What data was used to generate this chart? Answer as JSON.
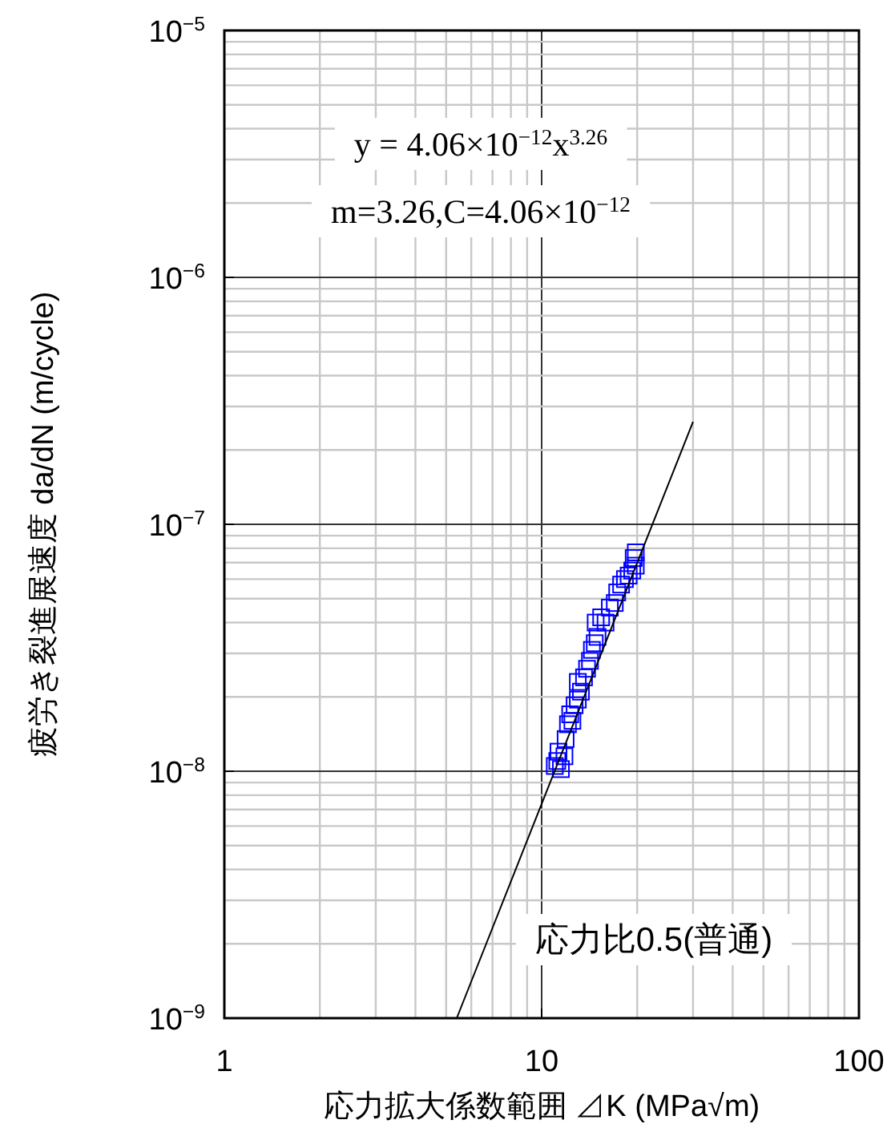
{
  "chart_data": {
    "type": "scatter",
    "xlabel": "応力拡大係数範囲 ⊿K (MPa√m)",
    "ylabel": "疲労き裂進展速度 da/dN (m/cycle)",
    "annotations": [
      "y = 4.06×10$^{−12}$x$^{3.26}$",
      "m=3.26,C=4.06×10$^{−12}$",
      "応力比0.5(普通)"
    ],
    "log": "xy",
    "grid": true,
    "xlim": [
      1,
      100
    ],
    "xticks": [
      1,
      10,
      100
    ],
    "ylim": [
      1e-09,
      1e-05
    ],
    "yticks": [
      {
        "value": 1e-09,
        "label": "10$^{−9}$"
      },
      {
        "value": 1e-08,
        "label": "10$^{−8}$"
      },
      {
        "value": 1e-07,
        "label": "10$^{−7}$"
      },
      {
        "value": 1e-06,
        "label": "10$^{−6}$"
      },
      {
        "value": 1e-05,
        "label": "10$^{−5}$"
      }
    ],
    "series": [
      {
        "color": "#0000ff",
        "marker": "square",
        "x": [
          11.0,
          11.2,
          11.5,
          11.3,
          11.8,
          11.9,
          12.1,
          12.3,
          12.5,
          12.7,
          13.0,
          13.3,
          13.0,
          13.6,
          13.9,
          14.2,
          14.4,
          14.7,
          15.0,
          14.8,
          15.4,
          15.9,
          16.4,
          17.0,
          17.3,
          17.8,
          18.3,
          18.8,
          19.3,
          19.8,
          19.5,
          19.8
        ],
        "values": [
          1.05e-08,
          1.1e-08,
          1.02e-08,
          1.2e-08,
          1.15e-08,
          1.35e-08,
          1.55e-08,
          1.7e-08,
          1.6e-08,
          1.85e-08,
          1.95e-08,
          2.1e-08,
          2.3e-08,
          2.4e-08,
          2.6e-08,
          2.8e-08,
          3.1e-08,
          3.3e-08,
          3.5e-08,
          4e-08,
          4.2e-08,
          4e-08,
          4.6e-08,
          4.8e-08,
          5.3e-08,
          5.7e-08,
          6e-08,
          6.2e-08,
          6.5e-08,
          6.8e-08,
          7.3e-08,
          7.7e-08
        ]
      },
      {
        "type": "line",
        "color": "#000000",
        "line_style": "solid",
        "x": [
          5.4,
          30
        ],
        "values": [
          1e-09,
          2.6e-07
        ]
      }
    ]
  }
}
